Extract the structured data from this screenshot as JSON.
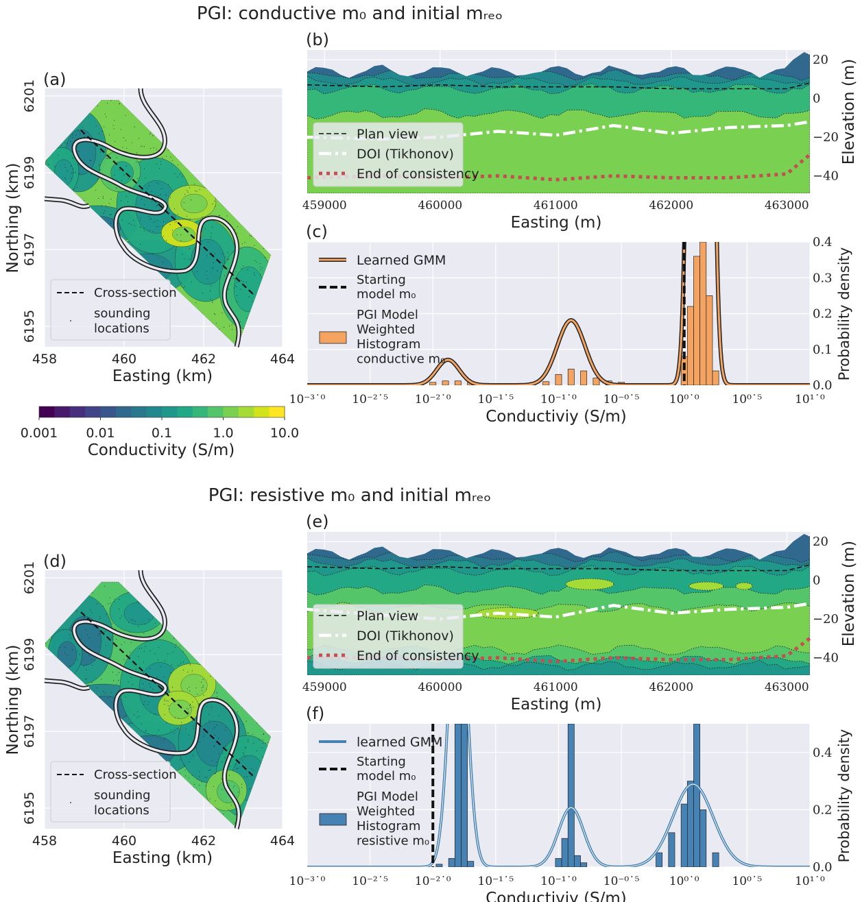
{
  "colors": {
    "axes_bg": "#eaeaf2",
    "grid": "#ffffff",
    "gmm_conductive": "#f4a460",
    "gmm_resistive": "#4682b4",
    "doi_line": "#ffffff",
    "consistency_line": "#c44e52",
    "viridis": [
      "#440154",
      "#481a6c",
      "#472f7d",
      "#414487",
      "#39568c",
      "#31688e",
      "#2a788e",
      "#23888e",
      "#1f988b",
      "#22a884",
      "#35b779",
      "#54c568",
      "#7ad151",
      "#a5db36",
      "#d2e21b",
      "#fde725"
    ]
  },
  "colorbar": {
    "label": "Conductivity (S/m)",
    "ticks": [
      "0.001",
      "0.01",
      "0.1",
      "1.0",
      "10.0"
    ],
    "log_range": [
      -3,
      1
    ]
  },
  "panels": [
    {
      "suptitle": "PGI: conductive m₀ and initial mᵣₑₒ",
      "map": {
        "label": "(a)",
        "xlabel": "Easting (km)",
        "ylabel": "Northing (km)",
        "xticks": [
          "458",
          "460",
          "462",
          "464"
        ],
        "yticks": [
          "6195",
          "6197",
          "6199",
          "6201"
        ],
        "legend": [
          "Cross-section",
          "sounding locations"
        ]
      },
      "section": {
        "label": "(b)",
        "xlabel": "Easting (m)",
        "ylabel": "Elevation (m)",
        "xticks": [
          "459000",
          "460000",
          "461000",
          "462000",
          "463000"
        ],
        "yticks": [
          "20",
          "0",
          "−20",
          "−40"
        ],
        "xlim": [
          458850,
          463200
        ],
        "ylim": [
          -49,
          25
        ],
        "legend": [
          "Plan view",
          "DOI (Tikhonov)",
          "End of consistency"
        ],
        "variant": "conductive"
      },
      "hist": {
        "label": "(c)",
        "xlabel": "Conductiviy (S/m)",
        "ylabel": "Probability density",
        "xticks": [
          "10⁻³˙⁰",
          "10⁻²˙⁵",
          "10⁻²˙⁰",
          "10⁻¹˙⁵",
          "10⁻¹˙⁰",
          "10⁻⁰˙⁵",
          "10⁰˙⁰",
          "10⁰˙⁵",
          "10¹˙⁰"
        ],
        "yticks": [
          "0.0",
          "0.1",
          "0.2",
          "0.3",
          "0.4"
        ],
        "ylim": [
          0,
          0.4
        ],
        "xlim_log": [
          -3,
          1
        ],
        "legend": [
          "Learned GMM",
          "Starting model m₀",
          "PGI Model Weighted Histogram conductive m₀"
        ],
        "starting_model_log": 0.0,
        "gmm": [
          {
            "mean": -1.88,
            "sd": 0.09,
            "weight": 0.016
          },
          {
            "mean": -0.9,
            "sd": 0.11,
            "weight": 0.05
          },
          {
            "mean": 0.13,
            "sd": 0.055,
            "weight": 0.9
          }
        ]
      }
    },
    {
      "suptitle": "PGI: resistive m₀ and initial mᵣₑₒ",
      "map": {
        "label": "(d)",
        "xlabel": "Easting (km)",
        "ylabel": "Northing (km)",
        "xticks": [
          "458",
          "460",
          "462",
          "464"
        ],
        "yticks": [
          "6195",
          "6197",
          "6199",
          "6201"
        ],
        "legend": [
          "Cross-section",
          "sounding locations"
        ]
      },
      "section": {
        "label": "(e)",
        "xlabel": "Easting (m)",
        "ylabel": "Elevation (m)",
        "xticks": [
          "459000",
          "460000",
          "461000",
          "462000",
          "463000"
        ],
        "yticks": [
          "20",
          "0",
          "−20",
          "−40"
        ],
        "xlim": [
          458850,
          463200
        ],
        "ylim": [
          -49,
          25
        ],
        "legend": [
          "Plan view",
          "DOI (Tikhonov)",
          "End of consistency"
        ],
        "variant": "resistive"
      },
      "hist": {
        "label": "(f)",
        "xlabel": "Conductiviy (S/m)",
        "ylabel": "Probability density",
        "xticks": [
          "10⁻³˙⁰",
          "10⁻²˙⁵",
          "10⁻²˙⁰",
          "10⁻¹˙⁵",
          "10⁻¹˙⁰",
          "10⁻⁰˙⁵",
          "10⁰˙⁰",
          "10⁰˙⁵",
          "10¹˙⁰"
        ],
        "yticks": [
          "0.0",
          "0.2",
          "0.4"
        ],
        "ylim": [
          0,
          0.5
        ],
        "xlim_log": [
          -3,
          1
        ],
        "legend": [
          "learned GMM",
          "Starting model m₀",
          "PGI Model Weighted Histogram resistive m₀"
        ],
        "starting_model_log": -2.0,
        "gmm": [
          {
            "mean": -1.8,
            "sd": 0.07,
            "weight": 0.18
          },
          {
            "mean": -0.9,
            "sd": 0.1,
            "weight": 0.052
          },
          {
            "mean": 0.07,
            "sd": 0.16,
            "weight": 0.116
          }
        ]
      }
    }
  ],
  "chart_data": [
    {
      "type": "heatmap",
      "title": "(a)",
      "xlabel": "Easting (km)",
      "ylabel": "Northing (km)",
      "xlim": [
        458,
        464
      ],
      "ylim": [
        6194.5,
        6201.5
      ],
      "colorscale": "viridis, log10 conductivity",
      "legend": [
        "Cross-section",
        "sounding locations"
      ],
      "legend_position": "lower-left",
      "cross_section": [
        [
          459,
          6199.8
        ],
        [
          463,
          6196
        ]
      ]
    },
    {
      "type": "area",
      "title": "(b)",
      "xlabel": "Easting (m)",
      "ylabel": "Elevation (m)",
      "xlim": [
        458850,
        463200
      ],
      "ylim": [
        -49,
        25
      ],
      "x": [
        458850,
        459500,
        460000,
        460500,
        461000,
        461500,
        462000,
        462500,
        463000,
        463200
      ],
      "series": [
        {
          "name": "Plan view",
          "values": [
            7,
            6,
            7,
            6,
            6,
            6,
            5,
            5,
            5,
            8
          ]
        },
        {
          "name": "DOI (Tikhonov)",
          "values": [
            -20,
            -21,
            -20,
            -17,
            -19,
            -14,
            -18,
            -15,
            -14,
            -12
          ]
        },
        {
          "name": "End of consistency",
          "values": [
            -41,
            -40,
            -41,
            -40,
            -42,
            -40,
            -41,
            -41,
            -39,
            -29
          ]
        }
      ],
      "legend_position": "lower-left"
    },
    {
      "type": "bar",
      "title": "(c)",
      "xlabel": "Conductiviy (S/m)",
      "ylabel": "Probability density",
      "xscale": "log",
      "xlim": [
        0.001,
        10
      ],
      "ylim": [
        0,
        0.4
      ],
      "x_log10": [
        -2.0,
        -1.9,
        -1.8,
        -1.7,
        -1.1,
        -1.0,
        -0.9,
        -0.8,
        -0.7,
        -0.6,
        -0.5,
        0.0,
        0.05,
        0.1,
        0.15,
        0.2,
        0.25
      ],
      "values": [
        0.008,
        0.012,
        0.012,
        0.008,
        0.01,
        0.03,
        0.045,
        0.04,
        0.02,
        0.012,
        0.008,
        0.08,
        0.22,
        0.36,
        0.4,
        0.25,
        0.04
      ],
      "legend": [
        "Learned GMM",
        "Starting model m₀",
        "PGI Model Weighted Histogram conductive m₀"
      ],
      "legend_position": "upper-left"
    },
    {
      "type": "heatmap",
      "title": "(d)",
      "xlabel": "Easting (km)",
      "ylabel": "Northing (km)",
      "xlim": [
        458,
        464
      ],
      "ylim": [
        6194.5,
        6201.5
      ],
      "colorscale": "viridis, log10 conductivity",
      "legend": [
        "Cross-section",
        "sounding locations"
      ],
      "legend_position": "lower-left"
    },
    {
      "type": "area",
      "title": "(e)",
      "xlabel": "Easting (m)",
      "ylabel": "Elevation (m)",
      "xlim": [
        458850,
        463200
      ],
      "ylim": [
        -49,
        25
      ],
      "x": [
        458850,
        459500,
        460000,
        460500,
        461000,
        461500,
        462000,
        462500,
        463000,
        463200
      ],
      "series": [
        {
          "name": "Plan view",
          "values": [
            7,
            6,
            7,
            6,
            6,
            6,
            5,
            5,
            5,
            8
          ]
        },
        {
          "name": "DOI (Tikhonov)",
          "values": [
            -15,
            -18,
            -20,
            -17,
            -19,
            -13,
            -17,
            -15,
            -14,
            -12
          ]
        },
        {
          "name": "End of consistency",
          "values": [
            -40,
            -40,
            -41,
            -40,
            -42,
            -40,
            -41,
            -41,
            -39,
            -30
          ]
        }
      ],
      "legend_position": "lower-left"
    },
    {
      "type": "bar",
      "title": "(f)",
      "xlabel": "Conductiviy (S/m)",
      "ylabel": "Probability density",
      "xscale": "log",
      "xlim": [
        0.001,
        10
      ],
      "ylim": [
        0,
        0.5
      ],
      "x_log10": [
        -1.95,
        -1.85,
        -1.8,
        -1.75,
        -1.7,
        -1.0,
        -0.95,
        -0.9,
        -0.85,
        -0.8,
        -0.2,
        -0.1,
        0.0,
        0.05,
        0.1,
        0.15,
        0.25
      ],
      "values": [
        0.01,
        0.03,
        0.5,
        0.5,
        0.02,
        0.03,
        0.1,
        0.5,
        0.04,
        0.015,
        0.05,
        0.12,
        0.22,
        0.3,
        0.5,
        0.2,
        0.05
      ],
      "legend": [
        "learned GMM",
        "Starting model m₀",
        "PGI Model Weighted Histogram resistive m₀"
      ],
      "legend_position": "upper-left"
    }
  ]
}
